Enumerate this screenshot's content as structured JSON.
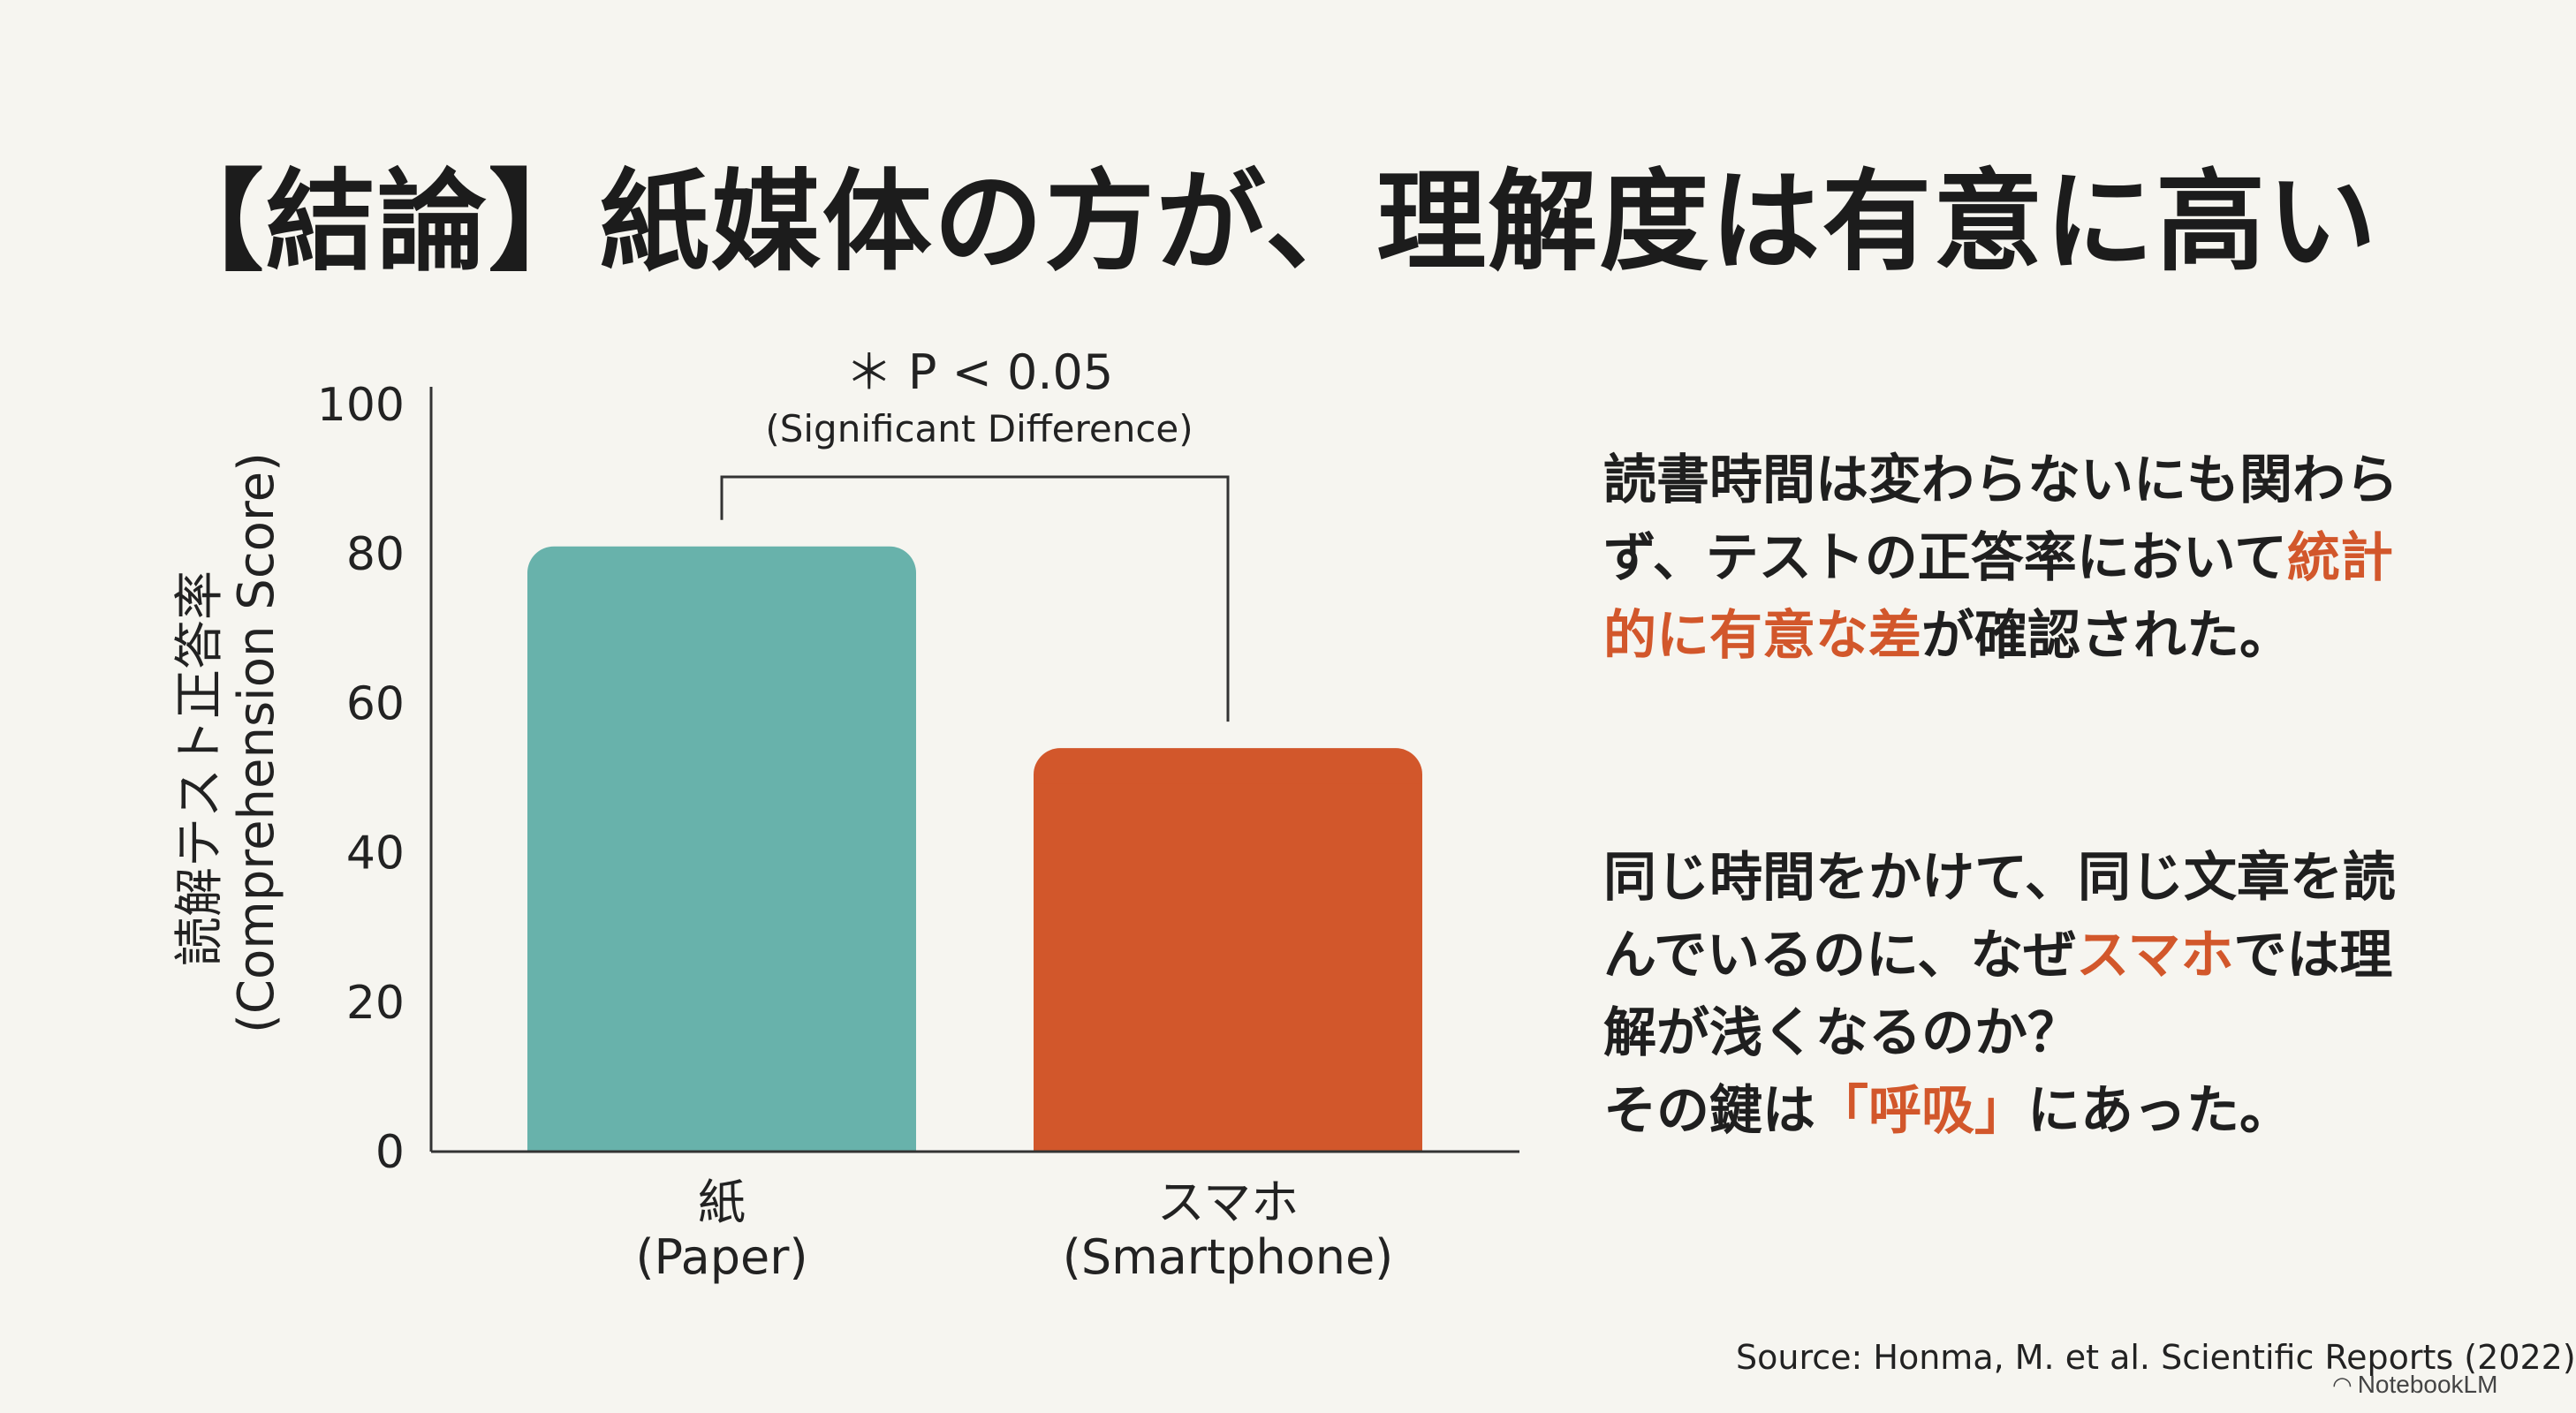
{
  "title": "【結論】紙媒体の方が、理解度は有意に高い",
  "chart_data": {
    "type": "bar",
    "categories": [
      "紙\n(Paper)",
      "スマホ\n(Smartphone)"
    ],
    "category_lines": [
      [
        "紙",
        "(Paper)"
      ],
      [
        "スマホ",
        "(Smartphone)"
      ]
    ],
    "values": [
      81,
      54
    ],
    "colors": [
      "#68b2ab",
      "#d2572b"
    ],
    "ylabel_lines": [
      "読解テスト正答率",
      "(Comprehension Score)"
    ],
    "ylim": [
      0,
      100
    ],
    "yticks": [
      0,
      20,
      40,
      60,
      80,
      100
    ],
    "grid": false,
    "annotation": {
      "line1": "＊ P < 0.05",
      "line2": "(Significant Difference)"
    }
  },
  "text": {
    "p1_part1": "読書時間は変わらないにも関わらず、テストの正答率において",
    "p1_highlight": "統計的に有意な差",
    "p1_part2": "が確認された。",
    "p2_part1": "同じ時間をかけて、同じ文章を読んでいるのに、なぜ",
    "p2_highlight1": "スマホ",
    "p2_part2": "では理解が浅くなるのか？",
    "p2_part3": "その鍵は",
    "p2_highlight2": "「呼吸」",
    "p2_part4": "にあった。"
  },
  "colors": {
    "highlight": "#d2572b",
    "background": "#f6f5f0"
  },
  "source": "Source: Honma, M. et al. Scientific Reports (2022)",
  "brand": "NotebookLM",
  "brand_icon": "notebooklm-logo-icon"
}
